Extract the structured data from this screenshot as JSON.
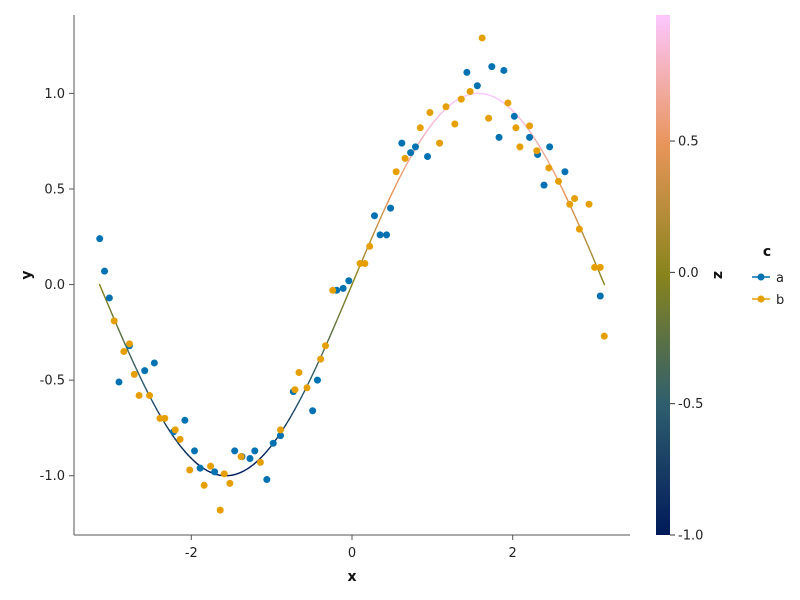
{
  "chart_data": {
    "type": "scatter",
    "xlabel": "x",
    "ylabel": "y",
    "xlim": [
      -3.46,
      3.46
    ],
    "ylim": [
      -1.31,
      1.41
    ],
    "x_ticks": [
      -2,
      0,
      2
    ],
    "x_tick_labels": [
      "-2",
      "0",
      "2"
    ],
    "y_ticks": [
      -1.0,
      -0.5,
      0.0,
      0.5,
      1.0
    ],
    "y_tick_labels": [
      "-1.0",
      "-0.5",
      "0.0",
      "0.5",
      "1.0"
    ],
    "grid": false,
    "legend": {
      "title": "c",
      "placement": "right",
      "entries": [
        "a",
        "b"
      ]
    },
    "colors": {
      "a": "#0072b2",
      "b": "#e69f00"
    },
    "colorbar": {
      "title": "z",
      "range": [
        -1.0,
        0.98
      ],
      "ticks": [
        -1.0,
        -0.5,
        0.0,
        0.5
      ],
      "tick_labels": [
        "-1.0",
        "-0.5",
        "0.0",
        "0.5"
      ],
      "stops": [
        "#001a5a",
        "#2e5e6e",
        "#88841c",
        "#e8955a",
        "#fdc7ff"
      ]
    },
    "line": {
      "name": "sin(x)",
      "function": "sin",
      "x_range": [
        -3.1416,
        3.1416
      ],
      "color_by": "z"
    },
    "series": [
      {
        "name": "a",
        "x": [
          -3.14,
          -3.08,
          -3.02,
          -2.9,
          -2.77,
          -2.58,
          -2.46,
          -2.22,
          -2.08,
          -1.96,
          -1.89,
          -1.71,
          -1.46,
          -1.37,
          -1.27,
          -1.21,
          -1.06,
          -0.98,
          -0.89,
          -0.73,
          -0.49,
          -0.43,
          -0.19,
          -0.11,
          -0.04,
          0.28,
          0.35,
          0.43,
          0.48,
          0.62,
          0.73,
          0.79,
          0.94,
          1.43,
          1.56,
          1.74,
          1.83,
          1.89,
          2.02,
          2.21,
          2.31,
          2.39,
          2.46,
          2.65,
          3.09
        ],
        "y": [
          0.24,
          0.07,
          -0.07,
          -0.51,
          -0.32,
          -0.45,
          -0.41,
          -0.77,
          -0.71,
          -0.87,
          -0.96,
          -0.98,
          -0.87,
          -0.9,
          -0.91,
          -0.87,
          -1.02,
          -0.83,
          -0.79,
          -0.56,
          -0.66,
          -0.5,
          -0.03,
          -0.02,
          0.02,
          0.36,
          0.26,
          0.26,
          0.4,
          0.74,
          0.69,
          0.72,
          0.67,
          1.11,
          1.04,
          1.14,
          0.77,
          1.12,
          0.88,
          0.77,
          0.68,
          0.52,
          0.72,
          0.59,
          -0.06
        ]
      },
      {
        "name": "b",
        "x": [
          -2.96,
          -2.84,
          -2.77,
          -2.71,
          -2.65,
          -2.52,
          -2.39,
          -2.33,
          -2.2,
          -2.14,
          -2.02,
          -1.84,
          -1.76,
          -1.64,
          -1.59,
          -1.52,
          -1.38,
          -1.14,
          -0.89,
          -0.71,
          -0.66,
          -0.56,
          -0.39,
          -0.33,
          -0.24,
          0.1,
          0.16,
          0.22,
          0.55,
          0.66,
          0.85,
          0.97,
          1.09,
          1.17,
          1.28,
          1.36,
          1.47,
          1.62,
          1.7,
          1.94,
          2.04,
          2.09,
          2.21,
          2.3,
          2.45,
          2.57,
          2.71,
          2.77,
          2.83,
          2.95,
          3.02,
          3.09,
          3.14
        ],
        "y": [
          -0.19,
          -0.35,
          -0.31,
          -0.47,
          -0.58,
          -0.58,
          -0.7,
          -0.7,
          -0.76,
          -0.81,
          -0.97,
          -1.05,
          -0.95,
          -1.18,
          -0.99,
          -1.04,
          -0.9,
          -0.93,
          -0.76,
          -0.55,
          -0.46,
          -0.54,
          -0.39,
          -0.32,
          -0.03,
          0.11,
          0.11,
          0.2,
          0.59,
          0.66,
          0.82,
          0.9,
          0.74,
          0.93,
          0.84,
          0.97,
          1.01,
          1.29,
          0.87,
          0.95,
          0.82,
          0.72,
          0.83,
          0.7,
          0.61,
          0.54,
          0.42,
          0.45,
          0.29,
          0.42,
          0.09,
          0.09,
          -0.27
        ]
      }
    ]
  }
}
